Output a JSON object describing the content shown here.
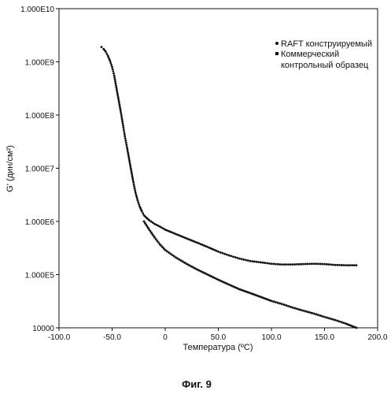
{
  "chart_data": {
    "type": "scatter",
    "caption": "Фиг. 9",
    "xlabel": "Температура (ºC)",
    "ylabel": "G' (дин/см²)",
    "xlim": [
      -100,
      200
    ],
    "ylim": [
      10000,
      10000000000
    ],
    "yscale": "log",
    "x_ticks": [
      {
        "value": -100,
        "label": "-100.0"
      },
      {
        "value": -50,
        "label": "-50.0"
      },
      {
        "value": 0,
        "label": "0"
      },
      {
        "value": 50,
        "label": "50.0"
      },
      {
        "value": 100,
        "label": "100.0"
      },
      {
        "value": 150,
        "label": "150.0"
      },
      {
        "value": 200,
        "label": "200.0"
      }
    ],
    "y_ticks": [
      {
        "value": 10000000000,
        "label": "1.000E10"
      },
      {
        "value": 1000000000,
        "label": "1.000E9"
      },
      {
        "value": 100000000,
        "label": "1.000E8"
      },
      {
        "value": 10000000,
        "label": "1.000E7"
      },
      {
        "value": 1000000,
        "label": "1.000E6"
      },
      {
        "value": 100000,
        "label": "1.000E5"
      },
      {
        "value": 10000,
        "label": "10000"
      }
    ],
    "grid": false,
    "legend_position": "top-right",
    "series": [
      {
        "name": "RAFT конструируемый",
        "marker": "circle",
        "points": [
          [
            -60,
            1900000000.0
          ],
          [
            -58,
            1750000000.0
          ],
          [
            -56,
            1550000000.0
          ],
          [
            -54,
            1300000000.0
          ],
          [
            -52,
            1050000000.0
          ],
          [
            -50,
            800000000.0
          ],
          [
            -48,
            550000000.0
          ],
          [
            -46,
            330000000.0
          ],
          [
            -44,
            200000000.0
          ],
          [
            -42,
            120000000.0
          ],
          [
            -40,
            70000000.0
          ],
          [
            -38,
            40000000.0
          ],
          [
            -36,
            25000000.0
          ],
          [
            -34,
            15000000.0
          ],
          [
            -32,
            9000000.0
          ],
          [
            -30,
            5500000.0
          ],
          [
            -28,
            3500000.0
          ],
          [
            -26,
            2500000.0
          ],
          [
            -24,
            1900000.0
          ],
          [
            -22,
            1550000.0
          ],
          [
            -20,
            1300000.0
          ],
          [
            -15,
            1050000.0
          ],
          [
            -10,
            900000.0
          ],
          [
            -5,
            800000.0
          ],
          [
            0,
            700000.0
          ],
          [
            10,
            580000.0
          ],
          [
            20,
            480000.0
          ],
          [
            30,
            400000.0
          ],
          [
            40,
            330000.0
          ],
          [
            50,
            270000.0
          ],
          [
            60,
            230000.0
          ],
          [
            70,
            200000.0
          ],
          [
            80,
            180000.0
          ],
          [
            90,
            170000.0
          ],
          [
            100,
            160000.0
          ],
          [
            110,
            155000.0
          ],
          [
            120,
            155000.0
          ],
          [
            130,
            158000.0
          ],
          [
            140,
            160000.0
          ],
          [
            150,
            158000.0
          ],
          [
            160,
            152000.0
          ],
          [
            170,
            150000.0
          ],
          [
            180,
            150000.0
          ]
        ]
      },
      {
        "name": "Коммерческий контрольный образец",
        "marker": "square",
        "points": [
          [
            -20,
            1000000.0
          ],
          [
            -15,
            700000.0
          ],
          [
            -10,
            500000.0
          ],
          [
            -5,
            370000.0
          ],
          [
            0,
            290000.0
          ],
          [
            10,
            210000.0
          ],
          [
            20,
            160000.0
          ],
          [
            30,
            125000.0
          ],
          [
            40,
            100000.0
          ],
          [
            50,
            80000.0
          ],
          [
            60,
            65000.0
          ],
          [
            70,
            53000.0
          ],
          [
            80,
            45000.0
          ],
          [
            90,
            38000.0
          ],
          [
            100,
            32000.0
          ],
          [
            110,
            28000.0
          ],
          [
            120,
            24000.0
          ],
          [
            130,
            21000.0
          ],
          [
            140,
            18500.0
          ],
          [
            150,
            16000.0
          ],
          [
            160,
            14000.0
          ],
          [
            170,
            12000.0
          ],
          [
            180,
            10000.0
          ]
        ]
      }
    ]
  }
}
